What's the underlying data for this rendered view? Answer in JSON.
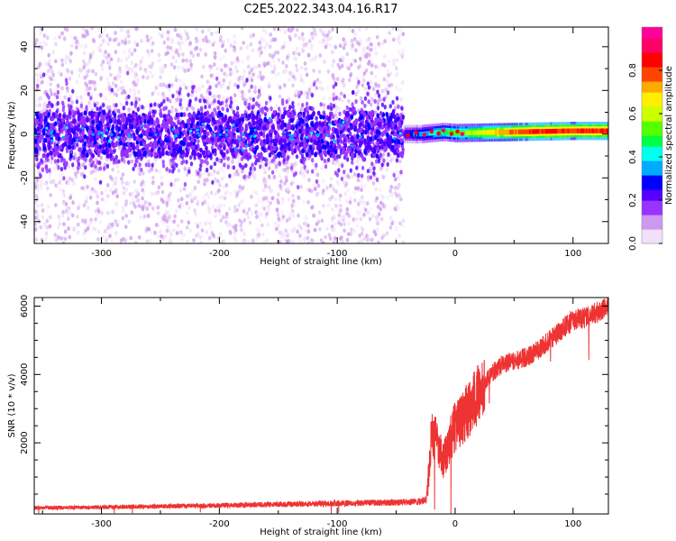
{
  "title": "C2E5.2022.343.04.16.R17",
  "colors": {
    "snr_line": "#ee3333",
    "axis": "#000000"
  },
  "chart_data": [
    {
      "type": "heatmap",
      "panel": "spectrogram",
      "xlabel": "Height of straight line (km)",
      "ylabel": "Frequency (Hz)",
      "xlim": [
        -357,
        130
      ],
      "ylim": [
        -50,
        49
      ],
      "xticks": [
        -300,
        -200,
        -100,
        0,
        100
      ],
      "yticks": [
        -40,
        -20,
        0,
        20,
        40
      ],
      "noise_region_x": [
        -357,
        -44
      ],
      "noise_core_band_hz": [
        -10,
        10
      ],
      "signal_region_x": [
        -44,
        130
      ],
      "signal_center_hz": [
        {
          "x": -44,
          "f": 0
        },
        {
          "x": -30,
          "f": 0
        },
        {
          "x": -10,
          "f": 1
        },
        {
          "x": 0,
          "f": 0.5
        },
        {
          "x": 50,
          "f": 1
        },
        {
          "x": 100,
          "f": 1.5
        },
        {
          "x": 130,
          "f": 1.5
        }
      ],
      "colorbar": {
        "label": "Normalized spectral amplitude",
        "range": [
          0,
          1
        ],
        "ticks": [
          0.0,
          0.2,
          0.4,
          0.6,
          0.8
        ],
        "colormap": [
          "#f0e0f8",
          "#cc99ee",
          "#9933ff",
          "#5500ff",
          "#0000ff",
          "#00aaff",
          "#00ffee",
          "#00ff44",
          "#55ff00",
          "#ccff00",
          "#ffee00",
          "#ffaa00",
          "#ff4400",
          "#ff0000",
          "#ff0066",
          "#ff0099"
        ]
      }
    },
    {
      "type": "line",
      "panel": "snr",
      "xlabel": "Height of straight line (km)",
      "ylabel": "SNR (10 * v/v)",
      "xlim": [
        -357,
        130
      ],
      "ylim": [
        -80,
        6250
      ],
      "xticks": [
        -300,
        -200,
        -100,
        0,
        100
      ],
      "yticks": [
        2000,
        4000,
        6000
      ],
      "series": [
        {
          "name": "SNR",
          "trend": [
            {
              "x": -357,
              "y": 100
            },
            {
              "x": -300,
              "y": 120
            },
            {
              "x": -200,
              "y": 170
            },
            {
              "x": -100,
              "y": 230
            },
            {
              "x": -50,
              "y": 260
            },
            {
              "x": -30,
              "y": 280
            },
            {
              "x": -24,
              "y": 350
            },
            {
              "x": -22,
              "y": 1300
            },
            {
              "x": -20,
              "y": 2300
            },
            {
              "x": -15,
              "y": 2000
            },
            {
              "x": -10,
              "y": 1500
            },
            {
              "x": -5,
              "y": 2000
            },
            {
              "x": 0,
              "y": 2500
            },
            {
              "x": 10,
              "y": 2900
            },
            {
              "x": 20,
              "y": 3400
            },
            {
              "x": 30,
              "y": 4000
            },
            {
              "x": 40,
              "y": 4300
            },
            {
              "x": 60,
              "y": 4500
            },
            {
              "x": 70,
              "y": 4700
            },
            {
              "x": 80,
              "y": 5000
            },
            {
              "x": 90,
              "y": 5300
            },
            {
              "x": 100,
              "y": 5600
            },
            {
              "x": 110,
              "y": 5650
            },
            {
              "x": 120,
              "y": 5800
            },
            {
              "x": 130,
              "y": 6000
            }
          ]
        }
      ]
    }
  ]
}
